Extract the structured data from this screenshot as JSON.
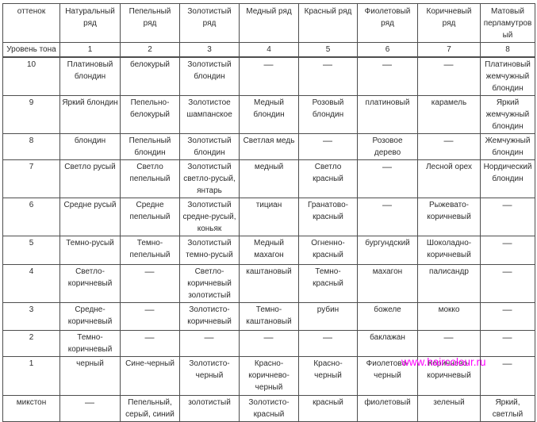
{
  "watermark": {
    "text": "www.haircolour.ru",
    "color": "#ff00ff"
  },
  "table": {
    "header_row1": [
      "оттенок",
      "Натуральный ряд",
      "Пепельный ряд",
      "Золотистый ряд",
      "Медный ряд",
      "Красный ряд",
      "Фиолетовый ряд",
      "Коричневый ряд",
      "Матовый перламутровый"
    ],
    "header_row2": [
      "Уровень тона",
      "1",
      "2",
      "3",
      "4",
      "5",
      "6",
      "7",
      "8"
    ],
    "rows": [
      {
        "level": "10",
        "cells": [
          "Платиновый блондин",
          "белокурый",
          "Золотистый блондин",
          "—",
          "—",
          "—",
          "—",
          "Платиновый жемчужный блондин"
        ]
      },
      {
        "level": "9",
        "cells": [
          "Яркий блондин",
          "Пепельно-белокурый",
          "Золотистое шампанское",
          "Медный блондин",
          "Розовый блондин",
          "платиновый",
          "карамель",
          "Яркий жемчужный блондин"
        ]
      },
      {
        "level": "8",
        "cells": [
          "блондин",
          "Пепельный блондин",
          "Золотистый блондин",
          "Светлая медь",
          "—",
          "Розовое дерево",
          "—",
          "Жемчужный блондин"
        ]
      },
      {
        "level": "7",
        "cells": [
          "Светло русый",
          "Светло пепельный",
          "Золотистый светло-русый, янтарь",
          "медный",
          "Светло красный",
          "—",
          "Лесной орех",
          "Нордический блондин"
        ]
      },
      {
        "level": "6",
        "cells": [
          "Средне русый",
          "Средне пепельный",
          "Золотистый средне-русый, коньяк",
          "тициан",
          "Гранатово-красный",
          "—",
          "Рыжевато-коричневый",
          "—"
        ]
      },
      {
        "level": "5",
        "cells": [
          "Темно-русый",
          "Темно-пепельный",
          "Золотистый темно-русый",
          "Медный махагон",
          "Огненно-красный",
          "бургундский",
          "Шоколадно-коричневый",
          "—"
        ]
      },
      {
        "level": "4",
        "cells": [
          "Светло-коричневый",
          "—",
          "Светло-коричневый золотистый",
          "каштановый",
          "Темно-красный",
          "махагон",
          "палисандр",
          "—"
        ]
      },
      {
        "level": "3",
        "cells": [
          "Средне-коричневый",
          "—",
          "Золотисто-коричневый",
          "Темно-каштановый",
          "рубин",
          "божеле",
          "мокко",
          "—"
        ]
      },
      {
        "level": "2",
        "cells": [
          "Темно-коричневый",
          "—",
          "—",
          "—",
          "—",
          "баклажан",
          "—",
          "—"
        ]
      },
      {
        "level": "1",
        "cells": [
          "черный",
          "Сине-черный",
          "Золотисто-черный",
          "Красно-коричнево-черный",
          "Красно-черный",
          "Фиолетово-черный",
          "Коричнево-коричневый",
          "—"
        ]
      },
      {
        "level": "микстон",
        "cells": [
          "—",
          "Пепельный, серый, синий",
          "золотистый",
          "Золотисто-красный",
          "красный",
          "фиолетовый",
          "зеленый",
          "Яркий, светлый"
        ]
      }
    ]
  }
}
